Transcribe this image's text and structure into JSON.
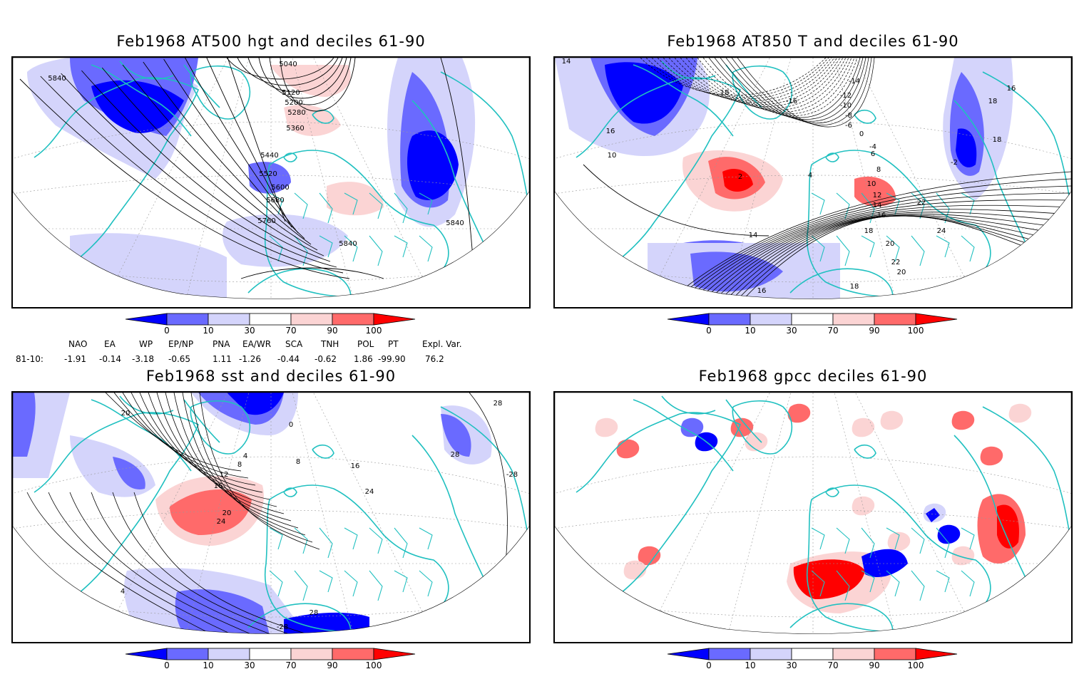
{
  "panels": [
    {
      "id": "p1",
      "title": "Feb1968 AT500 hgt and deciles 61-90",
      "contour_labels": [
        "5840",
        "5040",
        "5120",
        "5200",
        "5280",
        "5360",
        "5440",
        "5520",
        "5600",
        "5680",
        "5760",
        "5840",
        "5840"
      ]
    },
    {
      "id": "p2",
      "title": "Feb1968 AT850 T and deciles 61-90",
      "contour_labels": [
        "14",
        "-14",
        "-12",
        "-10",
        "-8",
        "-6",
        "-16",
        "18",
        "16",
        "16",
        "18",
        "10",
        "2",
        "4",
        "6",
        "8",
        "10",
        "12",
        "14",
        "16",
        "18",
        "20",
        "22",
        "24",
        "22",
        "20",
        "18",
        "14",
        "16",
        "18",
        "-2",
        "-4",
        "0"
      ]
    },
    {
      "id": "p3",
      "title": "Feb1968 sst and deciles 61-90",
      "contour_labels": [
        "20",
        "0",
        "4",
        "8",
        "12",
        "16",
        "20",
        "24",
        "28",
        "28",
        "-28",
        "4",
        "8",
        "16",
        "24",
        "28",
        "-28"
      ]
    },
    {
      "id": "p4",
      "title": "Feb1968 gpcc deciles 61-90",
      "contour_labels": []
    }
  ],
  "colorbar": {
    "labels": [
      "0",
      "10",
      "30",
      "70",
      "90",
      "100"
    ],
    "colors": {
      "deep_blue": "#0000ff",
      "mid_blue": "#6a6aff",
      "light_blue": "#d4d4fb",
      "white": "#ffffff",
      "light_red": "#fbd4d4",
      "mid_red": "#ff6a6a",
      "deep_red": "#ff0000"
    }
  },
  "indices": {
    "headers": [
      "NAO",
      "EA",
      "WP",
      "EP/NP",
      "PNA",
      "EA/WR",
      "SCA",
      "TNH",
      "POL",
      "PT",
      "Expl. Var."
    ],
    "row_label": "81-10:",
    "values": [
      "-1.91",
      "-0.14",
      "-3.18",
      "-0.65",
      "1.11",
      "-1.26",
      "-0.44",
      "-0.62",
      "1.86",
      "-99.90",
      "76.2"
    ]
  },
  "colors": {
    "coast": "#20c0c0",
    "contour": "#000000",
    "grid": "#999999"
  }
}
